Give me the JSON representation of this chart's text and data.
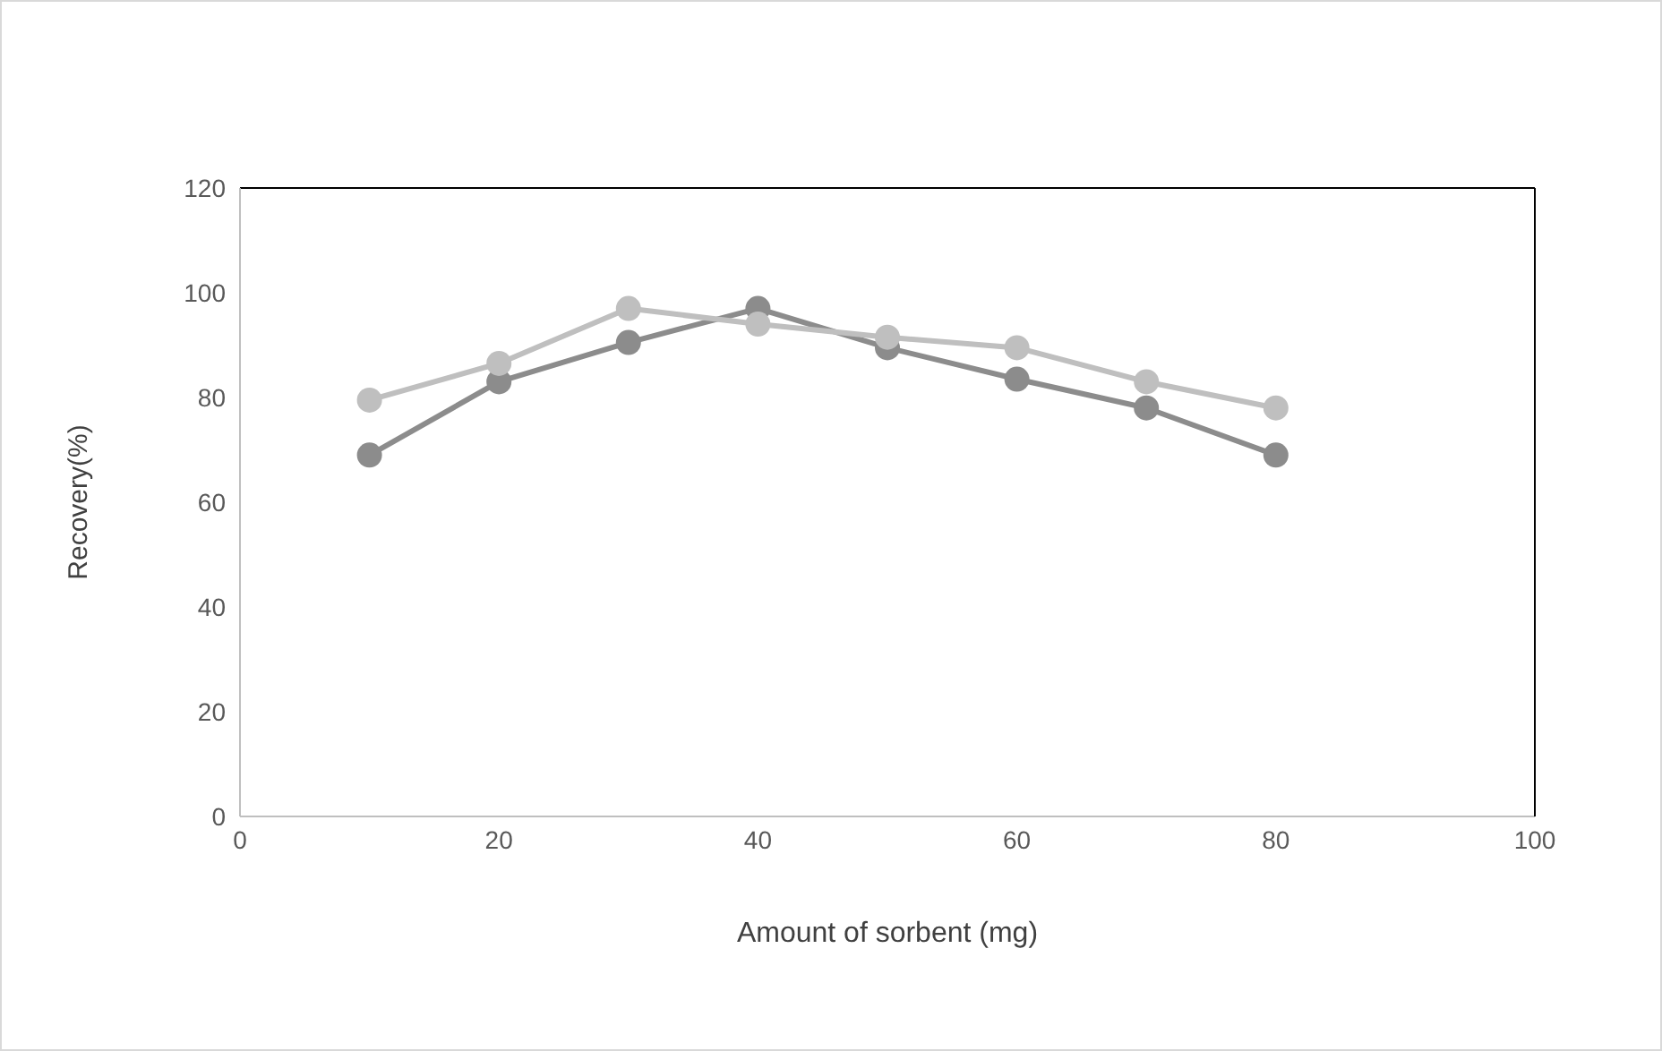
{
  "chart_data": {
    "type": "line",
    "xlabel": "Amount of sorbent (mg)",
    "ylabel": "Recovery(%)",
    "x": [
      10,
      20,
      30,
      40,
      50,
      60,
      70,
      80
    ],
    "series": [
      {
        "color": "#8c8c8c",
        "values": [
          69,
          83,
          90.5,
          97,
          89.5,
          83.5,
          78,
          69
        ]
      },
      {
        "color": "#bfbfbf",
        "values": [
          79.5,
          86.5,
          97,
          94,
          91.5,
          89.5,
          83,
          78
        ]
      }
    ],
    "xlim": [
      0,
      100
    ],
    "xticks": [
      0,
      20,
      40,
      60,
      80,
      100
    ],
    "ylim": [
      0,
      120
    ],
    "yticks": [
      0,
      20,
      40,
      60,
      80,
      100,
      120
    ],
    "legend": false,
    "marker": "circle",
    "line_style": "solid"
  }
}
